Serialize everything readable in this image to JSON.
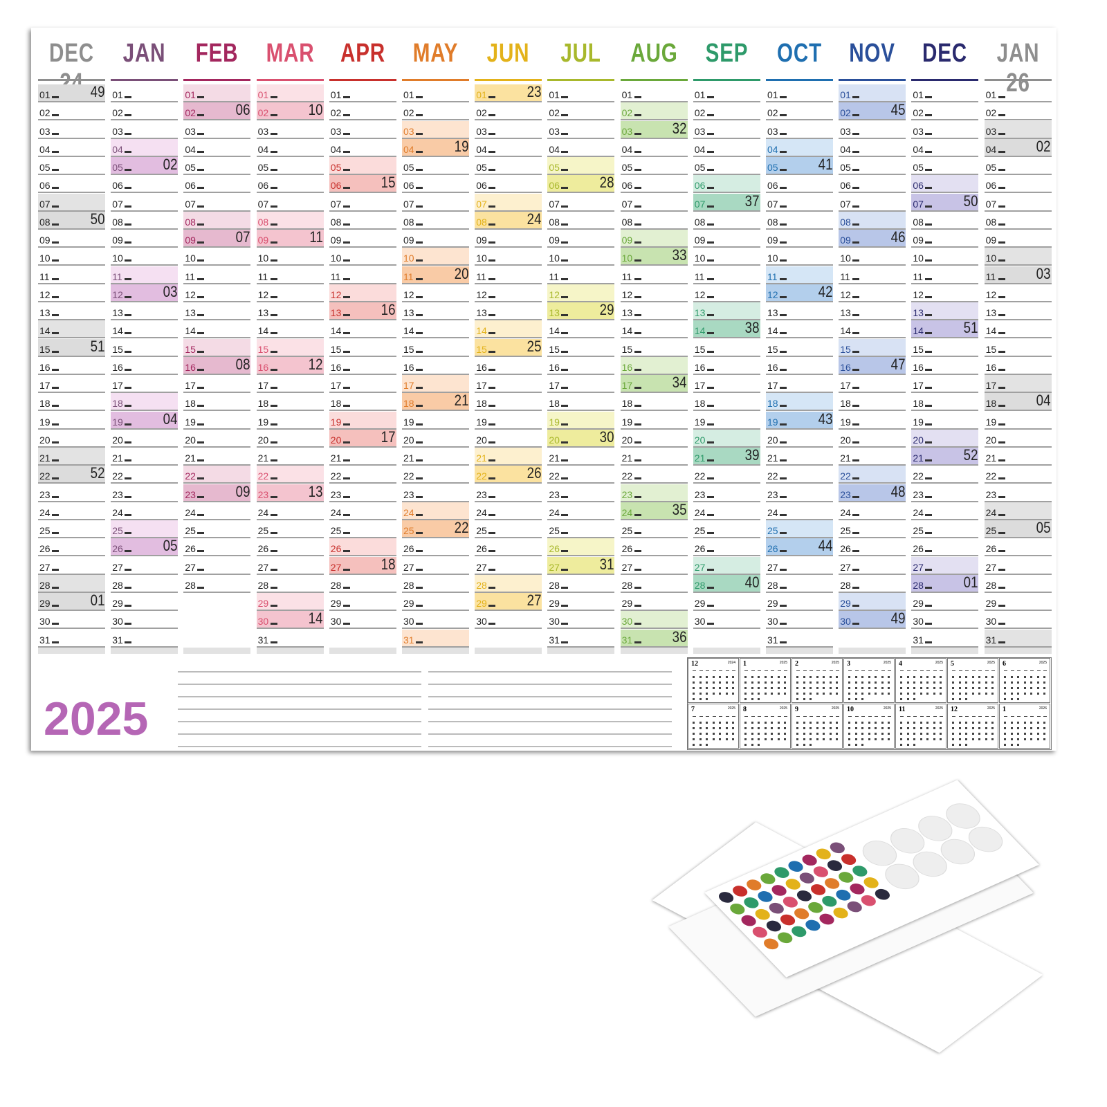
{
  "year_label": "2025",
  "months": [
    {
      "name": "DEC 24",
      "color": "#8e8e8e",
      "sat": "#e3e3e3",
      "sun": "#dcdcdc",
      "days": 31,
      "saturdays": [
        7,
        14,
        21,
        28
      ],
      "sundays": [
        {
          "day": 1,
          "week": "49"
        },
        {
          "day": 8,
          "week": "50"
        },
        {
          "day": 15,
          "week": "51"
        },
        {
          "day": 22,
          "week": "52"
        },
        {
          "day": 29,
          "week": "01"
        }
      ]
    },
    {
      "name": "JAN",
      "color": "#7a4f78",
      "sat": "#f5e0f2",
      "sun": "#e2bde0",
      "days": 31,
      "saturdays": [
        4,
        11,
        18,
        25
      ],
      "sundays": [
        {
          "day": 5,
          "week": "02"
        },
        {
          "day": 12,
          "week": "03"
        },
        {
          "day": 19,
          "week": "04"
        },
        {
          "day": 26,
          "week": "05"
        }
      ]
    },
    {
      "name": "FEB",
      "color": "#a3275e",
      "sat": "#f4dbe5",
      "sun": "#e6b9cf",
      "days": 28,
      "saturdays": [
        1,
        8,
        15,
        22
      ],
      "sundays": [
        {
          "day": 2,
          "week": "06"
        },
        {
          "day": 9,
          "week": "07"
        },
        {
          "day": 16,
          "week": "08"
        },
        {
          "day": 23,
          "week": "09"
        }
      ]
    },
    {
      "name": "MAR",
      "color": "#d9506f",
      "sat": "#fbe1e6",
      "sun": "#f4c4cf",
      "days": 31,
      "saturdays": [
        1,
        8,
        15,
        22,
        29
      ],
      "sundays": [
        {
          "day": 2,
          "week": "10"
        },
        {
          "day": 9,
          "week": "11"
        },
        {
          "day": 16,
          "week": "12"
        },
        {
          "day": 23,
          "week": "13"
        },
        {
          "day": 30,
          "week": "14"
        }
      ]
    },
    {
      "name": "APR",
      "color": "#c8302c",
      "sat": "#fbdcdb",
      "sun": "#f5c0bd",
      "days": 30,
      "saturdays": [
        5,
        12,
        19,
        26
      ],
      "sundays": [
        {
          "day": 6,
          "week": "15"
        },
        {
          "day": 13,
          "week": "16"
        },
        {
          "day": 20,
          "week": "17"
        },
        {
          "day": 27,
          "week": "18"
        }
      ]
    },
    {
      "name": "MAY",
      "color": "#e07c2a",
      "sat": "#fde4d0",
      "sun": "#f9cba6",
      "days": 31,
      "saturdays": [
        3,
        10,
        17,
        24,
        31
      ],
      "sundays": [
        {
          "day": 4,
          "week": "19"
        },
        {
          "day": 11,
          "week": "20"
        },
        {
          "day": 18,
          "week": "21"
        },
        {
          "day": 25,
          "week": "22"
        }
      ]
    },
    {
      "name": "JUN",
      "color": "#e3b21a",
      "sat": "#fdf0cf",
      "sun": "#fbe2a0",
      "days": 30,
      "saturdays": [
        7,
        14,
        21,
        28
      ],
      "sundays": [
        {
          "day": 1,
          "week": "23"
        },
        {
          "day": 8,
          "week": "24"
        },
        {
          "day": 15,
          "week": "25"
        },
        {
          "day": 22,
          "week": "26"
        },
        {
          "day": 29,
          "week": "27"
        }
      ]
    },
    {
      "name": "JUL",
      "color": "#a8b82c",
      "sat": "#f6f5c8",
      "sun": "#eeec9d",
      "days": 31,
      "saturdays": [
        5,
        12,
        19,
        26
      ],
      "sundays": [
        {
          "day": 6,
          "week": "28"
        },
        {
          "day": 13,
          "week": "29"
        },
        {
          "day": 20,
          "week": "30"
        },
        {
          "day": 27,
          "week": "31"
        }
      ]
    },
    {
      "name": "AUG",
      "color": "#6aa83a",
      "sat": "#e2f0d2",
      "sun": "#c8e3b0",
      "days": 31,
      "saturdays": [
        2,
        9,
        16,
        23,
        30
      ],
      "sundays": [
        {
          "day": 3,
          "week": "32"
        },
        {
          "day": 10,
          "week": "33"
        },
        {
          "day": 17,
          "week": "34"
        },
        {
          "day": 24,
          "week": "35"
        },
        {
          "day": 31,
          "week": "36"
        }
      ]
    },
    {
      "name": "SEP",
      "color": "#2e9a6a",
      "sat": "#d5ede2",
      "sun": "#a9d9c2",
      "days": 30,
      "saturdays": [
        6,
        13,
        20,
        27
      ],
      "sundays": [
        {
          "day": 7,
          "week": "37"
        },
        {
          "day": 14,
          "week": "38"
        },
        {
          "day": 21,
          "week": "39"
        },
        {
          "day": 28,
          "week": "40"
        }
      ]
    },
    {
      "name": "OCT",
      "color": "#1f6fb0",
      "sat": "#d5e6f6",
      "sun": "#b3cfec",
      "days": 31,
      "saturdays": [
        4,
        11,
        18,
        25
      ],
      "sundays": [
        {
          "day": 5,
          "week": "41"
        },
        {
          "day": 12,
          "week": "42"
        },
        {
          "day": 19,
          "week": "43"
        },
        {
          "day": 26,
          "week": "44"
        }
      ]
    },
    {
      "name": "NOV",
      "color": "#2a4f9a",
      "sat": "#d8e2f4",
      "sun": "#b8c6e8",
      "days": 30,
      "saturdays": [
        1,
        8,
        15,
        22,
        29
      ],
      "sundays": [
        {
          "day": 2,
          "week": "45"
        },
        {
          "day": 9,
          "week": "46"
        },
        {
          "day": 16,
          "week": "47"
        },
        {
          "day": 23,
          "week": "48"
        },
        {
          "day": 30,
          "week": "49"
        }
      ]
    },
    {
      "name": "DEC",
      "color": "#2a2a6e",
      "sat": "#e3e0f2",
      "sun": "#c8c3e6",
      "days": 31,
      "saturdays": [
        6,
        13,
        20,
        27
      ],
      "sundays": [
        {
          "day": 7,
          "week": "50"
        },
        {
          "day": 14,
          "week": "51"
        },
        {
          "day": 21,
          "week": "52"
        },
        {
          "day": 28,
          "week": "01"
        }
      ]
    },
    {
      "name": "JAN 26",
      "color": "#8e8e8e",
      "sat": "#e3e3e3",
      "sun": "#dcdcdc",
      "days": 31,
      "saturdays": [
        3,
        10,
        17,
        24,
        31
      ],
      "sundays": [
        {
          "day": 4,
          "week": "02"
        },
        {
          "day": 11,
          "week": "03"
        },
        {
          "day": 18,
          "week": "04"
        },
        {
          "day": 25,
          "week": "05"
        }
      ]
    }
  ],
  "mini_calendars": [
    {
      "month": "12",
      "year": "2024"
    },
    {
      "month": "1",
      "year": "2025"
    },
    {
      "month": "2",
      "year": "2025"
    },
    {
      "month": "3",
      "year": "2025"
    },
    {
      "month": "4",
      "year": "2025"
    },
    {
      "month": "5",
      "year": "2025"
    },
    {
      "month": "6",
      "year": "2025"
    },
    {
      "month": "7",
      "year": "2025"
    },
    {
      "month": "8",
      "year": "2025"
    },
    {
      "month": "9",
      "year": "2025"
    },
    {
      "month": "10",
      "year": "2025"
    },
    {
      "month": "11",
      "year": "2025"
    },
    {
      "month": "12",
      "year": "2025"
    },
    {
      "month": "1",
      "year": "2026"
    }
  ]
}
